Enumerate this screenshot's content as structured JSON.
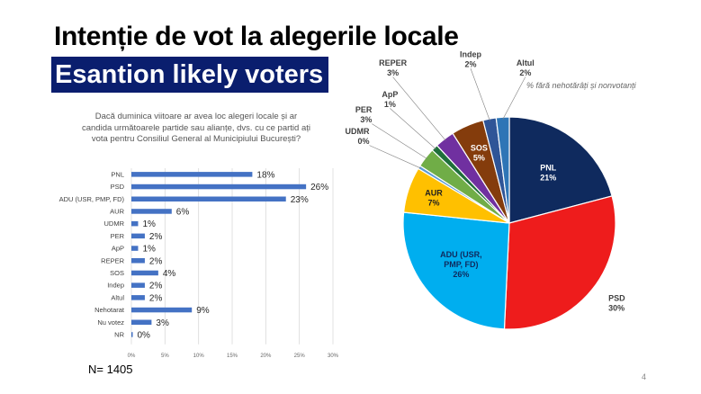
{
  "slide": {
    "title": "Intenție de vot la alegerile locale",
    "subtitle": "Esantion likely voters",
    "question": "Dacă duminica viitoare ar avea loc alegeri locale și ar candida următoarele partide sau alianțe, dvs. cu ce partid ați vota pentru Consiliul General al Municipiului București?",
    "sample_size": "N= 1405",
    "page_number": "4",
    "pie_caption": "% fără nehotărâți și nonvotanți"
  },
  "chart_data": [
    {
      "type": "bar",
      "orientation": "horizontal",
      "categories": [
        "PNL",
        "PSD",
        "ADU (USR, PMP, FD)",
        "AUR",
        "UDMR",
        "PER",
        "ApP",
        "REPER",
        "SOS",
        "Indep",
        "Altul",
        "Nehotarat",
        "Nu votez",
        "NR"
      ],
      "values": [
        18,
        26,
        23,
        6,
        1,
        2,
        1,
        2,
        4,
        2,
        2,
        9,
        3,
        0
      ],
      "value_labels": [
        "18%",
        "26%",
        "23%",
        "6%",
        "1%",
        "2%",
        "1%",
        "2%",
        "4%",
        "2%",
        "2%",
        "9%",
        "3%",
        "0%"
      ],
      "xlim": [
        0,
        30
      ],
      "x_ticks": [
        "0%",
        "5%",
        "10%",
        "15%",
        "20%",
        "25%",
        "30%"
      ],
      "grid": true,
      "bar_color": "#4472c4"
    },
    {
      "type": "pie",
      "slices": [
        {
          "name": "PNL",
          "label": "PNL",
          "value": 21,
          "value_label": "21%",
          "color": "#0f2a5e"
        },
        {
          "name": "PSD",
          "label": "PSD",
          "value": 30,
          "value_label": "30%",
          "color": "#ee1c1c"
        },
        {
          "name": "ADU",
          "label": "ADU (USR, PMP, FD)",
          "value": 26,
          "value_label": "26%",
          "color": "#00aeef"
        },
        {
          "name": "AUR",
          "label": "AUR",
          "value": 7,
          "value_label": "7%",
          "color": "#ffc000"
        },
        {
          "name": "UDMR",
          "label": "UDMR",
          "value": 0.5,
          "value_label": "0%",
          "color": "#5b9bd5"
        },
        {
          "name": "PER",
          "label": "PER",
          "value": 3,
          "value_label": "3%",
          "color": "#70ad47"
        },
        {
          "name": "ApP",
          "label": "ApP",
          "value": 1,
          "value_label": "1%",
          "color": "#1f6f3a"
        },
        {
          "name": "REPER",
          "label": "REPER",
          "value": 3,
          "value_label": "3%",
          "color": "#7030a0"
        },
        {
          "name": "SOS",
          "label": "SOS",
          "value": 5,
          "value_label": "5%",
          "color": "#843c0c"
        },
        {
          "name": "Indep",
          "label": "Indep",
          "value": 2,
          "value_label": "2%",
          "color": "#2f5597"
        },
        {
          "name": "Altul",
          "label": "Altul",
          "value": 2,
          "value_label": "2%",
          "color": "#2e75b6"
        }
      ]
    }
  ]
}
